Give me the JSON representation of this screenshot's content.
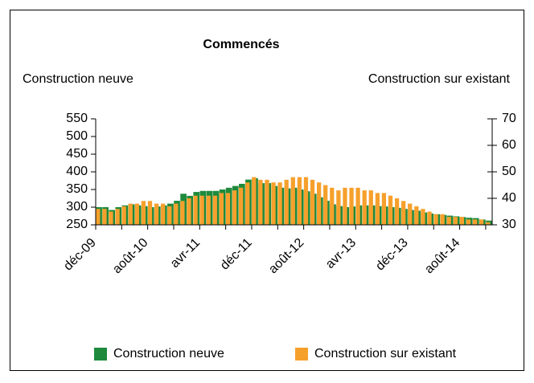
{
  "chart_data": {
    "type": "bar",
    "title": "Commencés",
    "ylabel": "Construction neuve",
    "y2label": "Construction sur existant",
    "categories": [
      "déc-09",
      null,
      null,
      null,
      null,
      null,
      null,
      null,
      "août-10",
      null,
      null,
      null,
      null,
      null,
      null,
      null,
      "avr-11",
      null,
      null,
      null,
      null,
      null,
      null,
      null,
      "déc-11",
      null,
      null,
      null,
      null,
      null,
      null,
      null,
      "août-12",
      null,
      null,
      null,
      null,
      null,
      null,
      null,
      "avr-13",
      null,
      null,
      null,
      null,
      null,
      null,
      null,
      "déc-13",
      null,
      null,
      null,
      null,
      null,
      null,
      null,
      "août-14",
      null,
      null,
      null,
      null
    ],
    "series": [
      {
        "name": "Construction neuve",
        "color": "#1f8a3c",
        "values": [
          300,
          300,
          292,
          300,
          305,
          308,
          305,
          303,
          300,
          302,
          305,
          310,
          318,
          338,
          332,
          343,
          346,
          346,
          346,
          350,
          355,
          360,
          366,
          378,
          382,
          368,
          368,
          360,
          355,
          353,
          355,
          350,
          345,
          338,
          328,
          318,
          308,
          303,
          300,
          302,
          305,
          305,
          305,
          303,
          302,
          300,
          298,
          295,
          292,
          290,
          285,
          282,
          280,
          278,
          276,
          274,
          272,
          270,
          269,
          265,
          262
        ]
      },
      {
        "name": "Construction sur existant",
        "color": "#f6a02c",
        "axis": "y2",
        "values": [
          36,
          36,
          35,
          36,
          37,
          38,
          38,
          39,
          39,
          38,
          38,
          37,
          38,
          39,
          40,
          41,
          41,
          41,
          41,
          42,
          42,
          43,
          44,
          46,
          48,
          47,
          47,
          46,
          46,
          47,
          48,
          48,
          48,
          47,
          46,
          45,
          44,
          43,
          44,
          44,
          44,
          43,
          43,
          42,
          42,
          41,
          40,
          39,
          38,
          37,
          36,
          35,
          34,
          34,
          33,
          33,
          33,
          32,
          32,
          32,
          31
        ]
      }
    ],
    "ylim": [
      250,
      550
    ],
    "yticks": [
      250,
      300,
      350,
      400,
      450,
      500,
      550
    ],
    "y2lim": [
      30,
      70
    ],
    "y2ticks": [
      30,
      40,
      50,
      60,
      70
    ],
    "legend": "bottom"
  }
}
